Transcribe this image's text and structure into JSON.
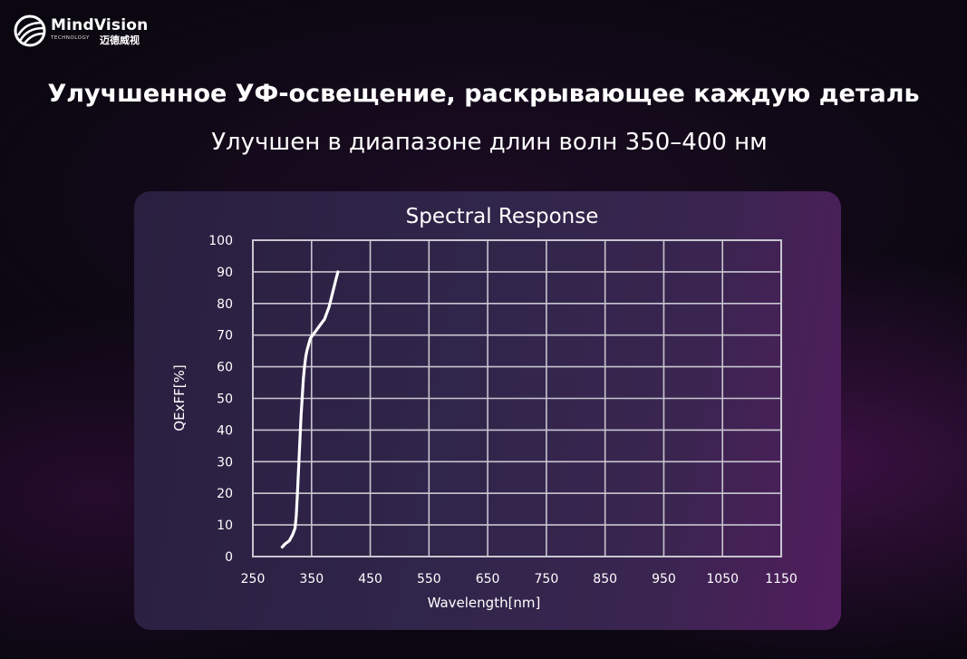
{
  "brand": {
    "name": "MindVision",
    "tagline": "TECHNOLOGY",
    "name_cn": "迈德威视"
  },
  "headline": "Улучшенное УФ-освещение, раскрывающее каждую деталь",
  "subheadline": "Улучшен в диапазоне длин волн 350–400 нм",
  "chart_data": {
    "type": "line",
    "title": "Spectral Response",
    "xlabel": "Wavelength[nm]",
    "ylabel": "QExFF[%]",
    "xlim": [
      250,
      1150
    ],
    "ylim": [
      0,
      100
    ],
    "xticks": [
      "250",
      "350",
      "450",
      "550",
      "650",
      "750",
      "850",
      "950",
      "1050",
      "1150"
    ],
    "yticks": [
      "0",
      "10",
      "20",
      "30",
      "40",
      "50",
      "60",
      "70",
      "80",
      "90",
      "100"
    ],
    "grid": true,
    "legend": "none",
    "series": [
      {
        "color": "#ffffff",
        "x": [
          300,
          305,
          312,
          318,
          322,
          324,
          326,
          328,
          330,
          332,
          334,
          336,
          338,
          340,
          342,
          345,
          348,
          352,
          356,
          360,
          364,
          368,
          372,
          376,
          380,
          384,
          388,
          392,
          395
        ],
        "y": [
          3,
          4,
          5,
          7,
          9,
          13,
          20,
          28,
          36,
          44,
          50,
          56,
          60,
          63,
          65,
          67,
          69,
          70,
          71,
          72,
          73,
          74,
          75,
          77,
          79,
          82,
          85,
          88,
          90
        ]
      }
    ]
  }
}
